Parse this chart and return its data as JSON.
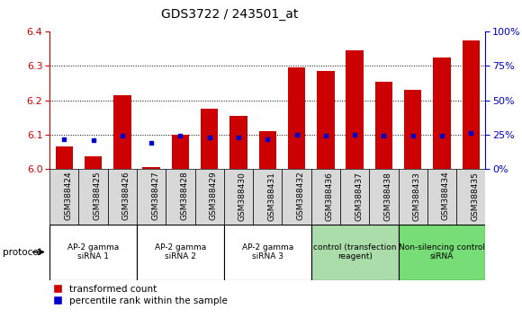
{
  "title": "GDS3722 / 243501_at",
  "categories": [
    "GSM388424",
    "GSM388425",
    "GSM388426",
    "GSM388427",
    "GSM388428",
    "GSM388429",
    "GSM388430",
    "GSM388431",
    "GSM388432",
    "GSM388436",
    "GSM388437",
    "GSM388438",
    "GSM388433",
    "GSM388434",
    "GSM388435"
  ],
  "red_values": [
    6.065,
    6.035,
    6.215,
    6.005,
    6.1,
    6.175,
    6.155,
    6.11,
    6.295,
    6.285,
    6.345,
    6.255,
    6.23,
    6.325,
    6.375
  ],
  "blue_values": [
    6.085,
    6.083,
    6.095,
    6.075,
    6.095,
    6.09,
    6.09,
    6.085,
    6.1,
    6.095,
    6.1,
    6.095,
    6.095,
    6.095,
    6.105
  ],
  "ymin": 6.0,
  "ymax": 6.4,
  "y2min": 0,
  "y2max": 100,
  "yticks": [
    6.0,
    6.1,
    6.2,
    6.3,
    6.4
  ],
  "y2ticks": [
    0,
    25,
    50,
    75,
    100
  ],
  "bar_color": "#cc0000",
  "blue_color": "#0000cc",
  "bar_width": 0.6,
  "groups": [
    {
      "label": "AP-2 gamma\nsiRNA 1",
      "start": 0,
      "end": 3,
      "color": "#ffffff"
    },
    {
      "label": "AP-2 gamma\nsiRNA 2",
      "start": 3,
      "end": 6,
      "color": "#ffffff"
    },
    {
      "label": "AP-2 gamma\nsiRNA 3",
      "start": 6,
      "end": 9,
      "color": "#ffffff"
    },
    {
      "label": "control (transfection\nreagent)",
      "start": 9,
      "end": 12,
      "color": "#aaddaa"
    },
    {
      "label": "Non-silencing control\nsiRNA",
      "start": 12,
      "end": 15,
      "color": "#77dd77"
    }
  ],
  "protocol_label": "protocol",
  "legend_red": "transformed count",
  "legend_blue": "percentile rank within the sample",
  "tick_color_left": "#cc0000",
  "tick_color_right": "#0000cc",
  "background_color": "#ffffff"
}
